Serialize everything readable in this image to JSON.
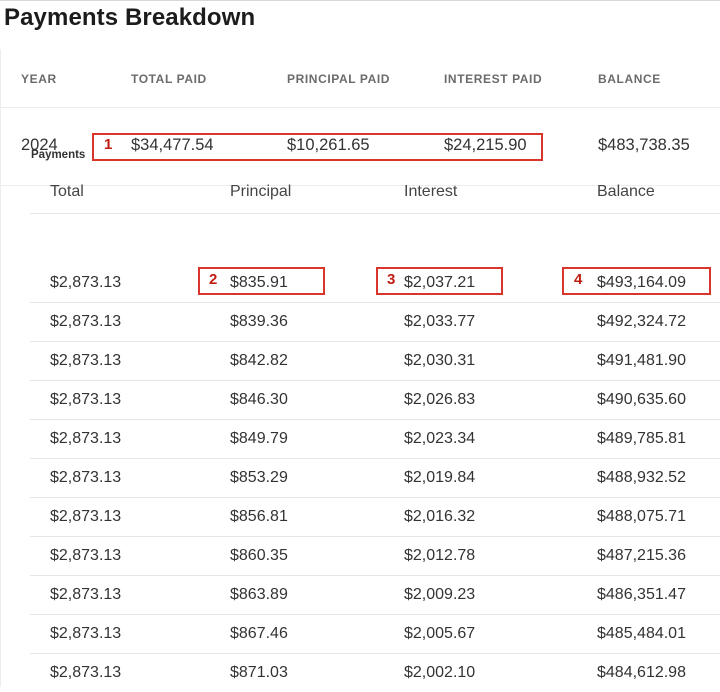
{
  "page": {
    "title": "Payments Breakdown"
  },
  "year_table": {
    "headers": [
      "YEAR",
      "TOTAL PAID",
      "PRINCIPAL PAID",
      "INTEREST PAID",
      "BALANCE"
    ],
    "row": {
      "year": "2024",
      "total_paid": "$34,477.54",
      "principal_paid": "$10,261.65",
      "interest_paid": "$24,215.90",
      "balance": "$483,738.35"
    }
  },
  "payments": {
    "label": "Payments",
    "headers": [
      "Total",
      "Principal",
      "Interest",
      "Balance"
    ],
    "rows": [
      [
        "$2,873.13",
        "$835.91",
        "$2,037.21",
        "$493,164.09"
      ],
      [
        "$2,873.13",
        "$839.36",
        "$2,033.77",
        "$492,324.72"
      ],
      [
        "$2,873.13",
        "$842.82",
        "$2,030.31",
        "$491,481.90"
      ],
      [
        "$2,873.13",
        "$846.30",
        "$2,026.83",
        "$490,635.60"
      ],
      [
        "$2,873.13",
        "$849.79",
        "$2,023.34",
        "$489,785.81"
      ],
      [
        "$2,873.13",
        "$853.29",
        "$2,019.84",
        "$488,932.52"
      ],
      [
        "$2,873.13",
        "$856.81",
        "$2,016.32",
        "$488,075.71"
      ],
      [
        "$2,873.13",
        "$860.35",
        "$2,012.78",
        "$487,215.36"
      ],
      [
        "$2,873.13",
        "$863.89",
        "$2,009.23",
        "$486,351.47"
      ],
      [
        "$2,873.13",
        "$867.46",
        "$2,005.67",
        "$485,484.01"
      ],
      [
        "$2,873.13",
        "$871.03",
        "$2,002.10",
        "$484,612.98"
      ]
    ]
  },
  "annotations": {
    "color": "#d9352a",
    "labels": [
      "1",
      "2",
      "3",
      "4"
    ]
  }
}
